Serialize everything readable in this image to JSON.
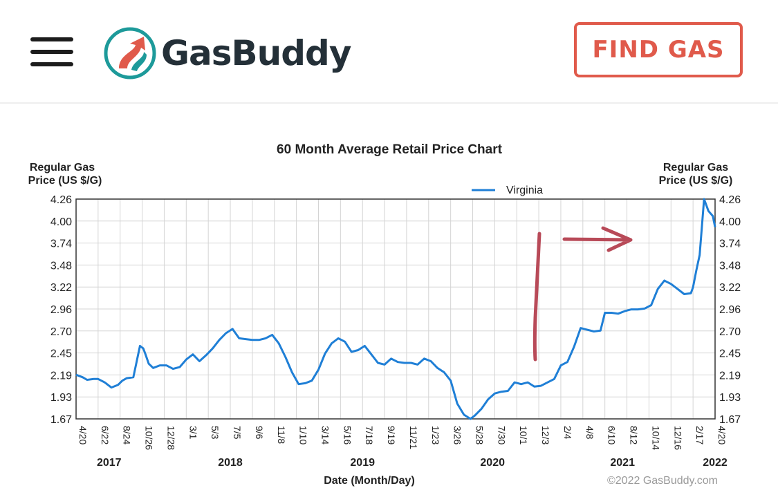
{
  "header": {
    "brand": "GasBuddy",
    "find_gas_label": "FIND GAS",
    "menu_icon": "hamburger-menu-icon",
    "logo_icon": "gasbuddy-road-logo-icon"
  },
  "colors": {
    "accent": "#e05a4b",
    "series": "#1f7fd6",
    "annotation": "#b84a58",
    "logo_teal": "#1d9a9a"
  },
  "chart_data": {
    "type": "line",
    "title": "60 Month Average Retail Price Chart",
    "ylabel_left": "Regular Gas Price (US $/G)",
    "ylabel_right": "Regular Gas Price (US $/G)",
    "xlabel": "Date (Month/Day)",
    "copyright": "©2022 GasBuddy.com",
    "legend": {
      "position": "top-center",
      "entries": [
        "Virginia"
      ]
    },
    "grid": true,
    "ylim": [
      1.67,
      4.26
    ],
    "yticks": [
      "4.26",
      "4.00",
      "3.74",
      "3.48",
      "3.22",
      "2.96",
      "2.70",
      "2.45",
      "2.19",
      "1.93",
      "1.67"
    ],
    "xticks": [
      "4/20",
      "6/22",
      "8/24",
      "10/26",
      "12/28",
      "3/1",
      "5/3",
      "7/5",
      "9/6",
      "11/8",
      "1/10",
      "3/14",
      "5/16",
      "7/18",
      "9/19",
      "11/21",
      "1/23",
      "3/26",
      "5/28",
      "7/30",
      "10/1",
      "12/3",
      "2/4",
      "4/8",
      "6/10",
      "8/12",
      "10/14",
      "12/16",
      "2/17",
      "4/20"
    ],
    "years": [
      "2017",
      "2018",
      "2019",
      "2020",
      "2021",
      "2022"
    ],
    "series": [
      {
        "name": "Virginia",
        "x": [
          0,
          0.3,
          0.5,
          0.8,
          1.0,
          1.3,
          1.6,
          1.9,
          2.1,
          2.3,
          2.6,
          2.9,
          3.05,
          3.15,
          3.3,
          3.5,
          3.8,
          4.1,
          4.4,
          4.7,
          5.0,
          5.3,
          5.6,
          5.9,
          6.2,
          6.5,
          6.8,
          7.1,
          7.4,
          7.7,
          8.0,
          8.3,
          8.6,
          8.9,
          9.2,
          9.5,
          9.8,
          10.1,
          10.4,
          10.7,
          11.0,
          11.3,
          11.6,
          11.9,
          12.2,
          12.5,
          12.8,
          13.1,
          13.4,
          13.7,
          14.0,
          14.3,
          14.6,
          14.9,
          15.2,
          15.5,
          15.8,
          16.1,
          16.4,
          16.7,
          17.0,
          17.3,
          17.6,
          17.9,
          18.1,
          18.4,
          18.7,
          19.0,
          19.3,
          19.6,
          19.9,
          20.2,
          20.5,
          20.8,
          21.1,
          21.4,
          21.7,
          22.0,
          22.3,
          22.6,
          22.9,
          23.2,
          23.5,
          23.8,
          24.0,
          24.3,
          24.6,
          24.9,
          25.2,
          25.5,
          25.8,
          26.1,
          26.4,
          26.7,
          27.0,
          27.3,
          27.6,
          27.9,
          28.0,
          28.15,
          28.3,
          28.5,
          28.7,
          28.9,
          29.0
        ],
        "y": [
          2.19,
          2.16,
          2.13,
          2.14,
          2.14,
          2.1,
          2.04,
          2.07,
          2.12,
          2.15,
          2.16,
          2.53,
          2.5,
          2.43,
          2.32,
          2.27,
          2.3,
          2.3,
          2.26,
          2.28,
          2.37,
          2.43,
          2.35,
          2.42,
          2.5,
          2.6,
          2.68,
          2.73,
          2.62,
          2.61,
          2.6,
          2.6,
          2.62,
          2.66,
          2.56,
          2.4,
          2.22,
          2.08,
          2.09,
          2.12,
          2.25,
          2.44,
          2.56,
          2.62,
          2.58,
          2.46,
          2.48,
          2.53,
          2.43,
          2.33,
          2.31,
          2.38,
          2.34,
          2.33,
          2.33,
          2.31,
          2.38,
          2.35,
          2.27,
          2.22,
          2.12,
          1.85,
          1.72,
          1.67,
          1.71,
          1.79,
          1.9,
          1.97,
          1.99,
          2.0,
          2.1,
          2.08,
          2.1,
          2.05,
          2.06,
          2.1,
          2.14,
          2.3,
          2.34,
          2.52,
          2.74,
          2.72,
          2.7,
          2.71,
          2.92,
          2.92,
          2.91,
          2.94,
          2.96,
          2.96,
          2.97,
          3.01,
          3.2,
          3.3,
          3.26,
          3.2,
          3.14,
          3.15,
          3.22,
          3.42,
          3.6,
          4.26,
          4.12,
          4.06,
          3.93
        ]
      }
    ]
  },
  "annotations": {
    "vertical_stroke": "red-handwritten-vertical-line",
    "arrow": "red-handwritten-right-arrow",
    "top_mark": "red-handwritten-tick"
  }
}
